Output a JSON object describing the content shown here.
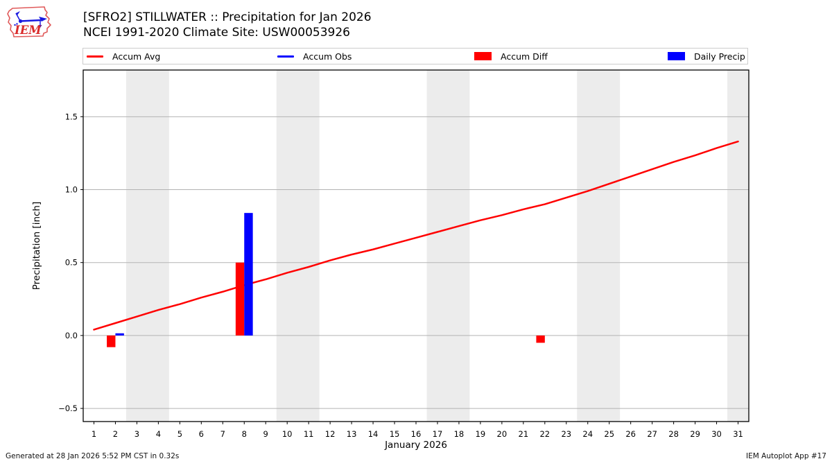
{
  "header": {
    "title_line1": "[SFRO2] STILLWATER :: Precipitation for Jan 2026",
    "title_line2": "NCEI 1991-2020 Climate Site: USW00053926",
    "logo_text": "IEM"
  },
  "legend": {
    "items": [
      {
        "label": "Accum Avg",
        "type": "line",
        "color": "#ff0000"
      },
      {
        "label": "Accum Obs",
        "type": "line",
        "color": "#0000ff"
      },
      {
        "label": "Accum Diff",
        "type": "patch",
        "color": "#ff0000"
      },
      {
        "label": "Daily Precip",
        "type": "patch",
        "color": "#0000ff"
      }
    ]
  },
  "footer": {
    "left": "Generated at 28 Jan 2026 5:52 PM CST in 0.32s",
    "right": "IEM Autoplot App #17"
  },
  "chart_data": {
    "type": "line+bar",
    "xlabel": "January 2026",
    "ylabel": "Precipitation [inch]",
    "xlim": [
      0.5,
      31.5
    ],
    "ylim": [
      -0.59,
      1.82
    ],
    "yticks": [
      -0.5,
      0.0,
      0.5,
      1.0,
      1.5
    ],
    "xticks": [
      1,
      2,
      3,
      4,
      5,
      6,
      7,
      8,
      9,
      10,
      11,
      12,
      13,
      14,
      15,
      16,
      17,
      18,
      19,
      20,
      21,
      22,
      23,
      24,
      25,
      26,
      27,
      28,
      29,
      30,
      31
    ],
    "days": [
      1,
      2,
      3,
      4,
      5,
      6,
      7,
      8,
      9,
      10,
      11,
      12,
      13,
      14,
      15,
      16,
      17,
      18,
      19,
      20,
      21,
      22,
      23,
      24,
      25,
      26,
      27,
      28,
      29,
      30,
      31
    ],
    "accum_avg": [
      0.04,
      0.085,
      0.13,
      0.175,
      0.215,
      0.26,
      0.3,
      0.345,
      0.385,
      0.43,
      0.47,
      0.515,
      0.555,
      0.59,
      0.63,
      0.67,
      0.71,
      0.75,
      0.79,
      0.825,
      0.865,
      0.9,
      0.945,
      0.99,
      1.04,
      1.09,
      1.14,
      1.19,
      1.235,
      1.285,
      1.33
    ],
    "accum_diff_bars": [
      {
        "day": 2,
        "value": -0.08
      },
      {
        "day": 8,
        "value": 0.5
      },
      {
        "day": 22,
        "value": -0.05
      }
    ],
    "daily_precip_bars": [
      {
        "day": 2,
        "value": 0.015
      },
      {
        "day": 8,
        "value": 0.84
      }
    ],
    "bar_width_days": 0.4,
    "weekend_bands": [
      [
        2.5,
        4.5
      ],
      [
        9.5,
        11.5
      ],
      [
        16.5,
        18.5
      ],
      [
        23.5,
        25.5
      ],
      [
        30.5,
        31.5
      ]
    ],
    "grid": true,
    "legend_position": "top",
    "colors": {
      "accum_avg": "#ff0000",
      "accum_obs": "#0000ff",
      "accum_diff": "#ff0000",
      "daily_precip": "#0000ff",
      "weekend_band": "#ececec",
      "gridline": "#b3b3b3",
      "frame": "#000000"
    }
  }
}
